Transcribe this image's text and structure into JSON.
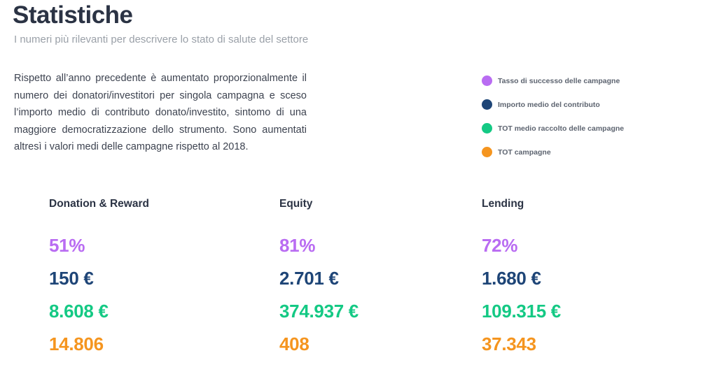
{
  "header": {
    "title": "Statistiche",
    "subtitle": "I numeri più rilevanti per descrivere lo stato di salute del settore"
  },
  "intro": {
    "text": "Rispetto all’anno precedente è aumentato proporzionalmente il numero dei donatori/investitori per singola campagna e sceso l’importo medio di contributo donato/investito, sintomo di una maggiore democratizzazione dello strumento. Sono aumentati altresì i valori medi delle campagne rispetto al 2018."
  },
  "legend": {
    "items": [
      {
        "label": "Tasso di successo delle campagne",
        "color": "#b96cf2"
      },
      {
        "label": "Importo medio del contributo",
        "color": "#1e4577"
      },
      {
        "label": "TOT medio raccolto delle campagne",
        "color": "#14c984"
      },
      {
        "label": "TOT campagne",
        "color": "#f5951f"
      }
    ]
  },
  "colors": {
    "rate": "#b96cf2",
    "avg": "#1e4577",
    "raised": "#14c984",
    "count": "#f5951f"
  },
  "columns": [
    {
      "heading": "Donation & Reward",
      "rate": "51%",
      "avg": "150 €",
      "raised": "8.608 €",
      "count": "14.806"
    },
    {
      "heading": "Equity",
      "rate": "81%",
      "avg": "2.701 €",
      "raised": "374.937 €",
      "count": "408"
    },
    {
      "heading": "Lending",
      "rate": "72%",
      "avg": "1.680 €",
      "raised": "109.315 €",
      "count": "37.343"
    }
  ]
}
